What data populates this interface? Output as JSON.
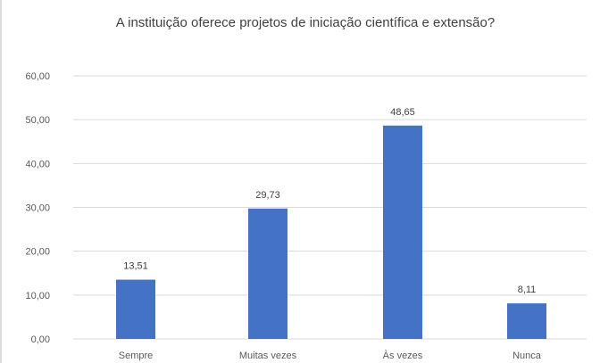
{
  "chart_data": {
    "type": "bar",
    "title": "A instituição oferece projetos de iniciação científica e extensão?",
    "categories": [
      "Sempre",
      "Muitas vezes",
      "Às vezes",
      "Nunca"
    ],
    "values": [
      13.51,
      29.73,
      48.65,
      8.11
    ],
    "value_labels": [
      "13,51",
      "29,73",
      "48,65",
      "8,11"
    ],
    "ylim": [
      0,
      60
    ],
    "yticks": [
      0,
      10,
      20,
      30,
      40,
      50,
      60
    ],
    "ytick_labels": [
      "0,00",
      "10,00",
      "20,00",
      "30,00",
      "40,00",
      "50,00",
      "60,00"
    ],
    "xlabel": "",
    "ylabel": "",
    "grid": true,
    "legend": "none",
    "bar_color": "#4472c4",
    "grid_color": "#d9d9d9"
  }
}
